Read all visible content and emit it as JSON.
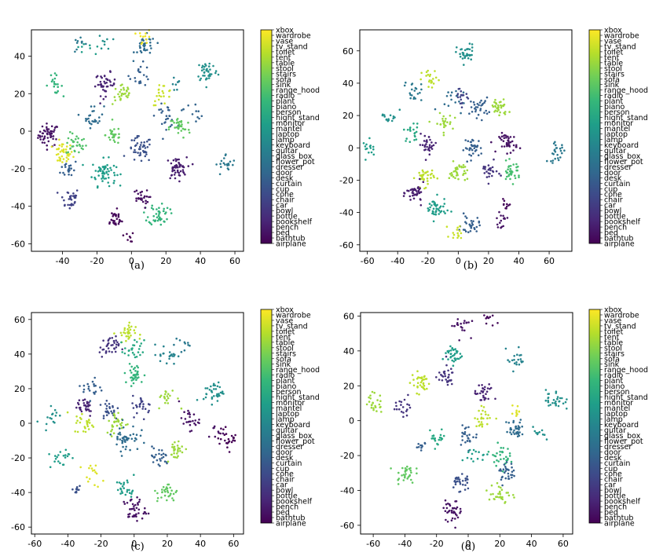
{
  "figure": {
    "colormap": [
      "#440154",
      "#482878",
      "#3e4989",
      "#31688e",
      "#26828e",
      "#1f9e89",
      "#35b779",
      "#6ece58",
      "#b5de2b",
      "#fde725"
    ]
  },
  "chart_data": [
    {
      "type": "scatter",
      "caption": "(a)",
      "xticks": [
        -40,
        -20,
        0,
        20,
        40,
        60
      ],
      "yticks": [
        -60,
        -40,
        -20,
        0,
        20,
        40
      ],
      "xlim": [
        -58,
        65
      ],
      "ylim": [
        -64,
        54
      ],
      "classes": [
        "airplane",
        "bathtub",
        "bed",
        "bench",
        "bookshelf",
        "bottle",
        "bowl",
        "car",
        "chair",
        "cone",
        "cup",
        "curtain",
        "desk",
        "door",
        "dresser",
        "flower_pot",
        "glass_box",
        "guitar",
        "keyboard",
        "lamp",
        "laptop",
        "mantel",
        "monitor",
        "night_stand",
        "person",
        "piano",
        "plant",
        "radio",
        "range_hood",
        "sink",
        "sofa",
        "stairs",
        "stool",
        "table",
        "tent",
        "toilet",
        "tv_stand",
        "vase",
        "wardrobe",
        "xbox"
      ],
      "clusters": [
        {
          "x": -48,
          "y": -2,
          "s": 3,
          "c": 0.05,
          "n": 50
        },
        {
          "x": -40,
          "y": -12,
          "s": 3,
          "c": 0.95,
          "n": 40
        },
        {
          "x": -32,
          "y": -7,
          "s": 3,
          "c": 0.72,
          "n": 30
        },
        {
          "x": -36,
          "y": -36,
          "s": 3,
          "c": 0.2,
          "n": 30
        },
        {
          "x": -36,
          "y": -20,
          "s": 2.5,
          "c": 0.3,
          "n": 20
        },
        {
          "x": -16,
          "y": -22,
          "s": 3.5,
          "c": 0.55,
          "n": 60
        },
        {
          "x": -22,
          "y": 8,
          "s": 3,
          "c": 0.35,
          "n": 25
        },
        {
          "x": -15,
          "y": 25,
          "s": 3,
          "c": 0.1,
          "n": 40
        },
        {
          "x": -45,
          "y": 25,
          "s": 2.5,
          "c": 0.65,
          "n": 20
        },
        {
          "x": -30,
          "y": 46,
          "s": 2,
          "c": 0.4,
          "n": 10
        },
        {
          "x": -5,
          "y": 20,
          "s": 3,
          "c": 0.85,
          "n": 30
        },
        {
          "x": -10,
          "y": -2,
          "s": 2.5,
          "c": 0.75,
          "n": 25
        },
        {
          "x": 5,
          "y": -10,
          "s": 3.5,
          "c": 0.25,
          "n": 45
        },
        {
          "x": 8,
          "y": 45,
          "s": 3,
          "c": 0.35,
          "n": 35
        },
        {
          "x": 8,
          "y": 50,
          "s": 2,
          "c": 0.98,
          "n": 12
        },
        {
          "x": 5,
          "y": 30,
          "s": 3,
          "c": 0.3,
          "n": 20
        },
        {
          "x": 18,
          "y": 20,
          "s": 3,
          "c": 0.92,
          "n": 20
        },
        {
          "x": 20,
          "y": 8,
          "s": 3,
          "c": 0.3,
          "n": 25
        },
        {
          "x": 26,
          "y": -20,
          "s": 3,
          "c": 0.08,
          "n": 50
        },
        {
          "x": 28,
          "y": 2,
          "s": 3,
          "c": 0.75,
          "n": 35
        },
        {
          "x": 44,
          "y": 32,
          "s": 3,
          "c": 0.5,
          "n": 40
        },
        {
          "x": 55,
          "y": -18,
          "s": 3,
          "c": 0.4,
          "n": 20
        },
        {
          "x": 16,
          "y": -44,
          "s": 3,
          "c": 0.65,
          "n": 45
        },
        {
          "x": -10,
          "y": -47,
          "s": 2.5,
          "c": 0.02,
          "n": 30
        },
        {
          "x": 5,
          "y": -36,
          "s": 2.5,
          "c": 0.04,
          "n": 25
        },
        {
          "x": -2,
          "y": -56,
          "s": 1.5,
          "c": 0.0,
          "n": 8
        },
        {
          "x": -15,
          "y": 47,
          "s": 2,
          "c": 0.5,
          "n": 8
        },
        {
          "x": 25,
          "y": 25,
          "s": 2,
          "c": 0.45,
          "n": 8
        },
        {
          "x": -25,
          "y": 45,
          "s": 3,
          "c": 0.55,
          "n": 8
        },
        {
          "x": 35,
          "y": 10,
          "s": 3,
          "c": 0.32,
          "n": 12
        }
      ]
    },
    {
      "type": "scatter",
      "caption": "(b)",
      "xticks": [
        -60,
        -40,
        -20,
        0,
        20,
        40,
        60
      ],
      "yticks": [
        -60,
        -40,
        -20,
        0,
        20,
        40,
        60
      ],
      "xlim": [
        -65,
        75
      ],
      "ylim": [
        -64,
        73
      ],
      "classes": [
        "airplane",
        "bathtub",
        "bed",
        "bench",
        "bookshelf",
        "bottle",
        "bowl",
        "car",
        "chair",
        "cone",
        "cup",
        "curtain",
        "desk",
        "door",
        "dresser",
        "flower_pot",
        "glass_box",
        "guitar",
        "keyboard",
        "lamp",
        "laptop",
        "mantel",
        "monitor",
        "night_stand",
        "person",
        "piano",
        "plant",
        "radio",
        "range_hood",
        "sink",
        "sofa",
        "stairs",
        "stool",
        "table",
        "tent",
        "toilet",
        "tv_stand",
        "vase",
        "wardrobe",
        "xbox"
      ],
      "clusters": [
        {
          "x": 5,
          "y": 58,
          "s": 3,
          "c": 0.5,
          "n": 35
        },
        {
          "x": -18,
          "y": 42,
          "s": 3,
          "c": 0.9,
          "n": 20
        },
        {
          "x": 27,
          "y": 25,
          "s": 3,
          "c": 0.85,
          "n": 35
        },
        {
          "x": 14,
          "y": 25,
          "s": 3,
          "c": 0.3,
          "n": 30
        },
        {
          "x": -30,
          "y": 10,
          "s": 3,
          "c": 0.6,
          "n": 20
        },
        {
          "x": -10,
          "y": 15,
          "s": 3,
          "c": 0.85,
          "n": 25
        },
        {
          "x": -20,
          "y": 2,
          "s": 3,
          "c": 0.1,
          "n": 30
        },
        {
          "x": 10,
          "y": 0,
          "s": 3,
          "c": 0.3,
          "n": 35
        },
        {
          "x": 33,
          "y": 3,
          "s": 3,
          "c": 0.05,
          "n": 40
        },
        {
          "x": 65,
          "y": -3,
          "s": 3,
          "c": 0.4,
          "n": 25
        },
        {
          "x": -58,
          "y": 0,
          "s": 2.5,
          "c": 0.55,
          "n": 15
        },
        {
          "x": -22,
          "y": -18,
          "s": 3,
          "c": 0.9,
          "n": 35
        },
        {
          "x": 0,
          "y": -15,
          "s": 3,
          "c": 0.85,
          "n": 35
        },
        {
          "x": 20,
          "y": -15,
          "s": 3,
          "c": 0.15,
          "n": 25
        },
        {
          "x": 35,
          "y": -15,
          "s": 3,
          "c": 0.7,
          "n": 35
        },
        {
          "x": -28,
          "y": -28,
          "s": 3,
          "c": 0.08,
          "n": 40
        },
        {
          "x": -15,
          "y": -38,
          "s": 3.5,
          "c": 0.55,
          "n": 45
        },
        {
          "x": 8,
          "y": -48,
          "s": 3,
          "c": 0.3,
          "n": 30
        },
        {
          "x": 28,
          "y": -45,
          "s": 2,
          "c": 0.05,
          "n": 15
        },
        {
          "x": 32,
          "y": -35,
          "s": 2,
          "c": 0.02,
          "n": 10
        },
        {
          "x": 0,
          "y": -52,
          "s": 2.5,
          "c": 0.92,
          "n": 15
        },
        {
          "x": -30,
          "y": 35,
          "s": 3,
          "c": 0.4,
          "n": 20
        },
        {
          "x": -45,
          "y": 20,
          "s": 3,
          "c": 0.5,
          "n": 15
        },
        {
          "x": 2,
          "y": 32,
          "s": 3,
          "c": 0.2,
          "n": 20
        },
        {
          "x": -5,
          "y": 30,
          "s": 4,
          "c": 0.35,
          "n": 15
        }
      ]
    },
    {
      "type": "scatter",
      "caption": "(c)",
      "xticks": [
        -60,
        -40,
        -20,
        0,
        20,
        40,
        60
      ],
      "yticks": [
        -60,
        -40,
        -20,
        0,
        20,
        40,
        60
      ],
      "xlim": [
        -62,
        66
      ],
      "ylim": [
        -64,
        64
      ],
      "classes": [
        "airplane",
        "bathtub",
        "bed",
        "bench",
        "bookshelf",
        "bottle",
        "bowl",
        "car",
        "chair",
        "cone",
        "cup",
        "curtain",
        "desk",
        "door",
        "dresser",
        "flower_pot",
        "glass_box",
        "guitar",
        "keyboard",
        "lamp",
        "laptop",
        "mantel",
        "monitor",
        "night_stand",
        "person",
        "piano",
        "plant",
        "radio",
        "range_hood",
        "sink",
        "sofa",
        "stairs",
        "stool",
        "table",
        "tent",
        "toilet",
        "tv_stand",
        "vase",
        "wardrobe",
        "xbox"
      ],
      "clusters": [
        {
          "x": -5,
          "y": 52,
          "s": 3,
          "c": 0.9,
          "n": 30
        },
        {
          "x": -15,
          "y": 44,
          "s": 3,
          "c": 0.15,
          "n": 35
        },
        {
          "x": 0,
          "y": 42,
          "s": 3,
          "c": 0.6,
          "n": 25
        },
        {
          "x": 0,
          "y": 28,
          "s": 3,
          "c": 0.65,
          "n": 35
        },
        {
          "x": 20,
          "y": 40,
          "s": 3,
          "c": 0.45,
          "n": 20
        },
        {
          "x": 48,
          "y": 18,
          "s": 3,
          "c": 0.5,
          "n": 35
        },
        {
          "x": -25,
          "y": 20,
          "s": 3,
          "c": 0.3,
          "n": 20
        },
        {
          "x": -30,
          "y": 10,
          "s": 3,
          "c": 0.1,
          "n": 30
        },
        {
          "x": -15,
          "y": 8,
          "s": 3,
          "c": 0.25,
          "n": 25
        },
        {
          "x": 5,
          "y": 10,
          "s": 3,
          "c": 0.2,
          "n": 25
        },
        {
          "x": 20,
          "y": 15,
          "s": 3,
          "c": 0.85,
          "n": 20
        },
        {
          "x": -30,
          "y": 0,
          "s": 3,
          "c": 0.9,
          "n": 25
        },
        {
          "x": -10,
          "y": 0,
          "s": 3.5,
          "c": 0.85,
          "n": 30
        },
        {
          "x": -5,
          "y": -8,
          "s": 4,
          "c": 0.35,
          "n": 45
        },
        {
          "x": 15,
          "y": -20,
          "s": 3,
          "c": 0.3,
          "n": 25
        },
        {
          "x": 25,
          "y": -15,
          "s": 3,
          "c": 0.85,
          "n": 30
        },
        {
          "x": -45,
          "y": -20,
          "s": 3,
          "c": 0.55,
          "n": 20
        },
        {
          "x": -50,
          "y": 5,
          "s": 3,
          "c": 0.5,
          "n": 15
        },
        {
          "x": -25,
          "y": -30,
          "s": 3,
          "c": 0.95,
          "n": 15
        },
        {
          "x": -5,
          "y": -38,
          "s": 3,
          "c": 0.55,
          "n": 25
        },
        {
          "x": 20,
          "y": -40,
          "s": 3,
          "c": 0.75,
          "n": 30
        },
        {
          "x": 0,
          "y": -50,
          "s": 3.5,
          "c": 0.05,
          "n": 40
        },
        {
          "x": 33,
          "y": 2,
          "s": 3,
          "c": 0.05,
          "n": 25
        },
        {
          "x": 57,
          "y": -9,
          "s": 3,
          "c": 0.0,
          "n": 25
        },
        {
          "x": 48,
          "y": -5,
          "s": 2,
          "c": 0.05,
          "n": 8
        },
        {
          "x": -35,
          "y": -38,
          "s": 2,
          "c": 0.25,
          "n": 10
        },
        {
          "x": 30,
          "y": 45,
          "s": 3,
          "c": 0.4,
          "n": 10
        }
      ]
    },
    {
      "type": "scatter",
      "caption": "(d)",
      "xticks": [
        -60,
        -40,
        -20,
        0,
        20,
        40,
        60
      ],
      "yticks": [
        -60,
        -40,
        -20,
        0,
        20,
        40,
        60
      ],
      "xlim": [
        -68,
        66
      ],
      "ylim": [
        -65,
        62
      ],
      "classes": [
        "airplane",
        "bathtub",
        "bed",
        "bench",
        "bookshelf",
        "bottle",
        "bowl",
        "car",
        "chair",
        "cone",
        "cup",
        "curtain",
        "desk",
        "door",
        "dresser",
        "flower_pot",
        "glass_box",
        "guitar",
        "keyboard",
        "lamp",
        "laptop",
        "mantel",
        "monitor",
        "night_stand",
        "person",
        "piano",
        "plant",
        "radio",
        "range_hood",
        "sink",
        "sofa",
        "stairs",
        "stool",
        "table",
        "tent",
        "toilet",
        "tv_stand",
        "vase",
        "wardrobe",
        "xbox"
      ],
      "clusters": [
        {
          "x": -5,
          "y": 55,
          "s": 3,
          "c": 0.05,
          "n": 20
        },
        {
          "x": 12,
          "y": 58,
          "s": 2,
          "c": 0.02,
          "n": 10
        },
        {
          "x": -10,
          "y": 38,
          "s": 3,
          "c": 0.55,
          "n": 35
        },
        {
          "x": -30,
          "y": 22,
          "s": 3,
          "c": 0.9,
          "n": 35
        },
        {
          "x": -15,
          "y": 26,
          "s": 3,
          "c": 0.15,
          "n": 30
        },
        {
          "x": 10,
          "y": 15,
          "s": 3,
          "c": 0.1,
          "n": 30
        },
        {
          "x": 30,
          "y": 35,
          "s": 3,
          "c": 0.45,
          "n": 20
        },
        {
          "x": 55,
          "y": 12,
          "s": 3,
          "c": 0.5,
          "n": 30
        },
        {
          "x": -60,
          "y": 10,
          "s": 3,
          "c": 0.85,
          "n": 25
        },
        {
          "x": -40,
          "y": 8,
          "s": 3,
          "c": 0.15,
          "n": 20
        },
        {
          "x": -20,
          "y": -10,
          "s": 3,
          "c": 0.6,
          "n": 20
        },
        {
          "x": 0,
          "y": -8,
          "s": 3,
          "c": 0.3,
          "n": 25
        },
        {
          "x": 10,
          "y": 2,
          "s": 3,
          "c": 0.9,
          "n": 25
        },
        {
          "x": 30,
          "y": -5,
          "s": 3,
          "c": 0.35,
          "n": 35
        },
        {
          "x": 20,
          "y": -20,
          "s": 3,
          "c": 0.65,
          "n": 30
        },
        {
          "x": -40,
          "y": -30,
          "s": 3,
          "c": 0.75,
          "n": 30
        },
        {
          "x": -5,
          "y": -35,
          "s": 3,
          "c": 0.25,
          "n": 30
        },
        {
          "x": 20,
          "y": -42,
          "s": 3.5,
          "c": 0.85,
          "n": 30
        },
        {
          "x": 25,
          "y": -30,
          "s": 3,
          "c": 0.3,
          "n": 30
        },
        {
          "x": -10,
          "y": -52,
          "s": 3,
          "c": 0.05,
          "n": 35
        },
        {
          "x": 45,
          "y": -8,
          "s": 2,
          "c": 0.5,
          "n": 10
        },
        {
          "x": -30,
          "y": -15,
          "s": 2,
          "c": 0.3,
          "n": 10
        },
        {
          "x": 5,
          "y": -20,
          "s": 3,
          "c": 0.55,
          "n": 15
        },
        {
          "x": 30,
          "y": 5,
          "s": 2,
          "c": 0.95,
          "n": 10
        }
      ]
    }
  ]
}
